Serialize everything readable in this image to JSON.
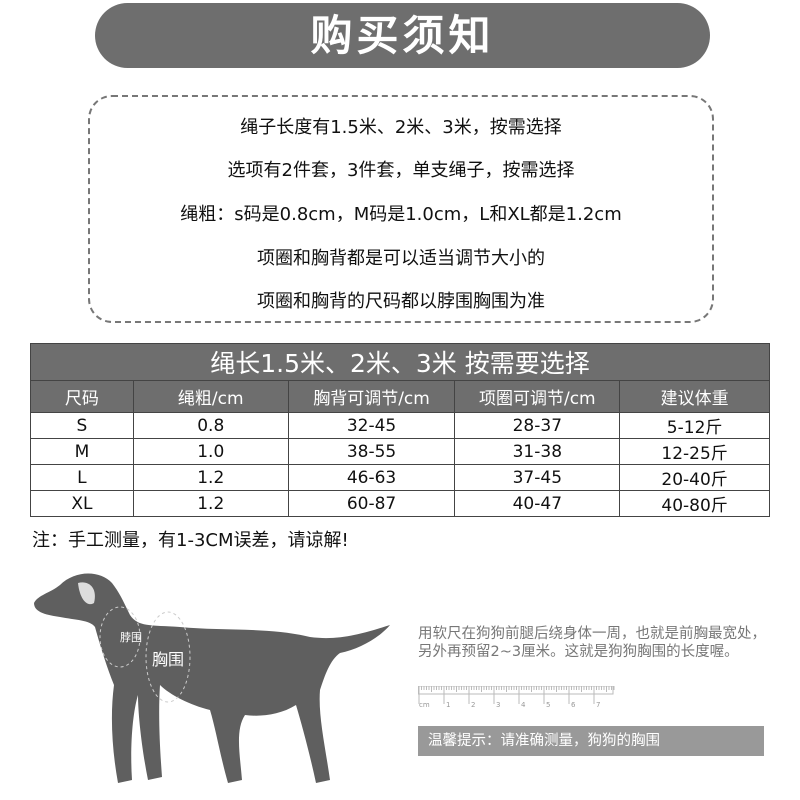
{
  "title": "购买须知",
  "notice_lines": [
    "绳子长度有1.5米、2米、3米，按需选择",
    "选项有2件套，3件套，单支绳子，按需选择",
    "绳粗：s码是0.8cm，M码是1.0cm，L和XL都是1.2cm",
    "项圈和胸背都是可以适当调节大小的",
    "项圈和胸背的尺码都以脖围胸围为准"
  ],
  "table": {
    "title": "绳长1.5米、2米、3米 按需要选择",
    "headers": [
      "尺码",
      "绳粗/cm",
      "胸背可调节/cm",
      "项圈可调节/cm",
      "建议体重"
    ],
    "rows": [
      [
        "S",
        "0.8",
        "32-45",
        "28-37",
        "5-12斤"
      ],
      [
        "M",
        "1.0",
        "38-55",
        "31-38",
        "12-25斤"
      ],
      [
        "L",
        "1.2",
        "46-63",
        "37-45",
        "20-40斤"
      ],
      [
        "XL",
        "1.2",
        "60-87",
        "40-47",
        "40-80斤"
      ]
    ]
  },
  "note": "注：手工测量，有1-3CM误差，请谅解!",
  "dog": {
    "neck_label": "脖围",
    "chest_label": "胸围"
  },
  "measure_text": "用软尺在狗狗前腿后绕身体一周，也就是前胸最宽处，另外再预留2~3厘米。这就是狗狗胸围的长度喔。",
  "ruler": {
    "unit": "cm",
    "ticks": [
      "1",
      "2",
      "3",
      "4",
      "5",
      "6",
      "7"
    ]
  },
  "tip": "温馨提示：请准确测量，狗狗的胸围"
}
